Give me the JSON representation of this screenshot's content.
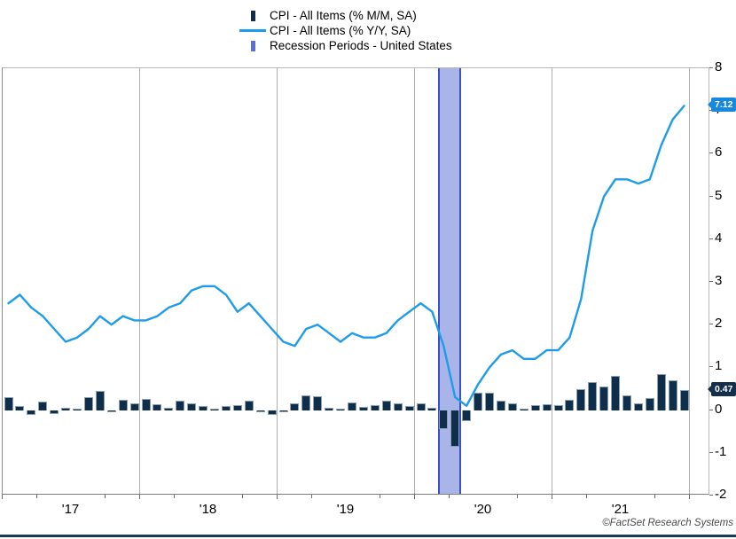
{
  "legend": {
    "items": [
      {
        "label": "CPI - All Items (% M/M, SA)",
        "marker": "bar",
        "color": "#0F2E4C"
      },
      {
        "label": "CPI - All Items (% Y/Y, SA)",
        "marker": "line",
        "color": "#1E9CE9"
      },
      {
        "label": "Recession Periods - United States",
        "marker": "band",
        "color": "#5D6FD8"
      }
    ]
  },
  "chart_data": {
    "type": "bar+line",
    "x_unit": "month",
    "months": [
      "2017-01",
      "2017-02",
      "2017-03",
      "2017-04",
      "2017-05",
      "2017-06",
      "2017-07",
      "2017-08",
      "2017-09",
      "2017-10",
      "2017-11",
      "2017-12",
      "2018-01",
      "2018-02",
      "2018-03",
      "2018-04",
      "2018-05",
      "2018-06",
      "2018-07",
      "2018-08",
      "2018-09",
      "2018-10",
      "2018-11",
      "2018-12",
      "2019-01",
      "2019-02",
      "2019-03",
      "2019-04",
      "2019-05",
      "2019-06",
      "2019-07",
      "2019-08",
      "2019-09",
      "2019-10",
      "2019-11",
      "2019-12",
      "2020-01",
      "2020-02",
      "2020-03",
      "2020-04",
      "2020-05",
      "2020-06",
      "2020-07",
      "2020-08",
      "2020-09",
      "2020-10",
      "2020-11",
      "2020-12",
      "2021-01",
      "2021-02",
      "2021-03",
      "2021-04",
      "2021-05",
      "2021-06",
      "2021-07",
      "2021-08",
      "2021-09",
      "2021-10",
      "2021-11",
      "2021-12"
    ],
    "series": [
      {
        "name": "CPI - All Items (% M/M, SA)",
        "type": "bar",
        "color": "#0F2E4C",
        "values": [
          0.3,
          0.1,
          -0.12,
          0.2,
          -0.1,
          0.06,
          0.03,
          0.3,
          0.45,
          -0.06,
          0.25,
          0.15,
          0.26,
          0.13,
          0.06,
          0.22,
          0.15,
          0.1,
          0.04,
          0.1,
          0.12,
          0.22,
          -0.05,
          -0.12,
          -0.03,
          0.15,
          0.35,
          0.33,
          0.05,
          0.04,
          0.17,
          0.08,
          0.12,
          0.23,
          0.16,
          0.1,
          0.15,
          0.06,
          -0.45,
          -0.85,
          -0.25,
          0.4,
          0.4,
          0.22,
          0.15,
          0.04,
          0.12,
          0.14,
          0.12,
          0.25,
          0.5,
          0.65,
          0.55,
          0.8,
          0.35,
          0.15,
          0.28,
          0.85,
          0.7,
          0.47
        ]
      },
      {
        "name": "CPI - All Items (% Y/Y, SA)",
        "type": "line",
        "color": "#1E9CE9",
        "values": [
          2.5,
          2.7,
          2.4,
          2.2,
          1.9,
          1.6,
          1.7,
          1.9,
          2.2,
          2.0,
          2.2,
          2.1,
          2.1,
          2.2,
          2.4,
          2.5,
          2.8,
          2.9,
          2.9,
          2.7,
          2.3,
          2.5,
          2.2,
          1.9,
          1.6,
          1.5,
          1.9,
          2.0,
          1.8,
          1.6,
          1.8,
          1.7,
          1.7,
          1.8,
          2.1,
          2.3,
          2.5,
          2.3,
          1.5,
          0.3,
          0.1,
          0.6,
          1.0,
          1.3,
          1.4,
          1.2,
          1.2,
          1.4,
          1.4,
          1.7,
          2.6,
          4.2,
          5.0,
          5.4,
          5.4,
          5.3,
          5.4,
          6.2,
          6.8,
          7.12
        ]
      }
    ],
    "recession_periods": [
      {
        "label": "Recession Periods - United States",
        "start": "2020-03",
        "end": "2020-04",
        "fill": "#A9B4E9",
        "border": "#3B51C5"
      }
    ],
    "y_axis": {
      "side": "right",
      "min": -2,
      "max": 8,
      "ticks": [
        8,
        7,
        6,
        5,
        4,
        3,
        2,
        1,
        0,
        -1,
        -2
      ]
    },
    "x_axis": {
      "labels": [
        "'17",
        "'18",
        "'19",
        "'20",
        "'21"
      ]
    },
    "last_value_labels": {
      "line": "7.12",
      "bar": "0.47",
      "line_badge_color": "#1788DB",
      "bar_badge_color": "#122F4D"
    },
    "grid": "vertical-year-lines",
    "frame_color": "#1B3A5C"
  },
  "footer": {
    "copyright": "©FactSet Research Systems"
  }
}
